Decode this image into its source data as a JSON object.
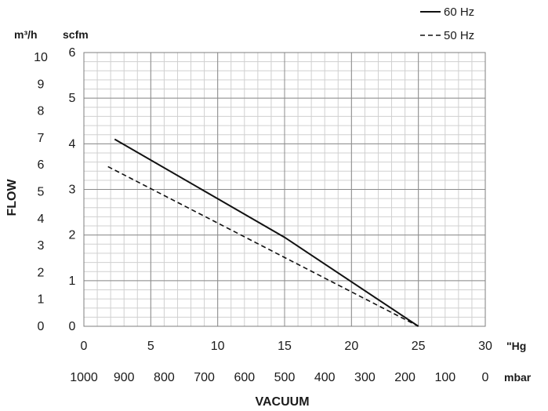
{
  "chart_data": {
    "type": "line",
    "title": "",
    "xlabel": "VACUUM",
    "ylabel": "FLOW",
    "grid": true,
    "legend_position": "top-right",
    "x_axis": {
      "unit": "\"Hg",
      "ticks": [
        0,
        5,
        10,
        15,
        20,
        25,
        30
      ],
      "range": [
        0,
        30
      ],
      "minor_step": 1
    },
    "x_axis_secondary": {
      "unit": "mbar",
      "ticks": [
        1000,
        900,
        800,
        700,
        600,
        500,
        400,
        300,
        200,
        100,
        0
      ]
    },
    "y_axis": {
      "unit": "scfm",
      "ticks": [
        0,
        1,
        2,
        3,
        4,
        5,
        6
      ],
      "range": [
        0,
        6
      ],
      "minor_step": 0.2
    },
    "y_axis_secondary": {
      "unit": "m³/h",
      "ticks": [
        0,
        1,
        2,
        3,
        4,
        5,
        6,
        7,
        8,
        9,
        10
      ]
    },
    "series": [
      {
        "name": "60 Hz",
        "style": "solid",
        "color": "#111111",
        "points": [
          [
            2.3,
            4.1
          ],
          [
            15,
            1.95
          ],
          [
            25,
            0
          ]
        ]
      },
      {
        "name": "50 Hz",
        "style": "dashed",
        "color": "#111111",
        "points": [
          [
            1.8,
            3.5
          ],
          [
            25,
            0
          ]
        ]
      }
    ]
  }
}
